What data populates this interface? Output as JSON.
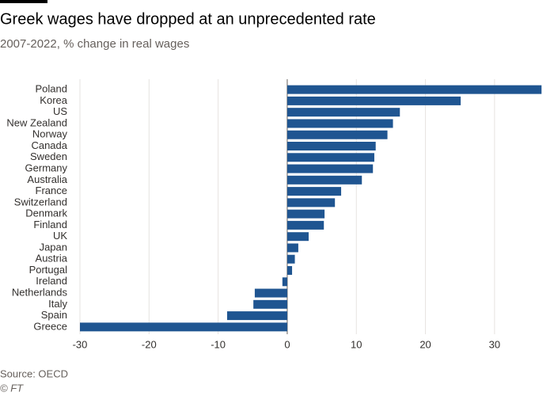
{
  "chart_data": {
    "type": "bar",
    "orientation": "horizontal",
    "title": "Greek wages have dropped at an unprecedented rate",
    "subtitle": "2007-2022, % change in real wages",
    "categories": [
      "Poland",
      "Korea",
      "US",
      "New Zealand",
      "Norway",
      "Canada",
      "Sweden",
      "Germany",
      "Australia",
      "France",
      "Switzerland",
      "Denmark",
      "Finland",
      "UK",
      "Japan",
      "Austria",
      "Portugal",
      "Ireland",
      "Netherlands",
      "Italy",
      "Spain",
      "Greece"
    ],
    "values": [
      36.8,
      25.1,
      16.3,
      15.3,
      14.5,
      12.8,
      12.6,
      12.4,
      10.8,
      7.8,
      6.9,
      5.4,
      5.3,
      3.1,
      1.6,
      1.1,
      0.7,
      -0.7,
      -4.7,
      -4.9,
      -8.7,
      -30
    ],
    "color": "#1f5591",
    "xlim": [
      -30,
      37
    ],
    "xticks": [
      -30,
      -20,
      -10,
      0,
      10,
      20,
      30
    ],
    "grid": true,
    "source": "Source: OECD",
    "credit": "© FT"
  }
}
